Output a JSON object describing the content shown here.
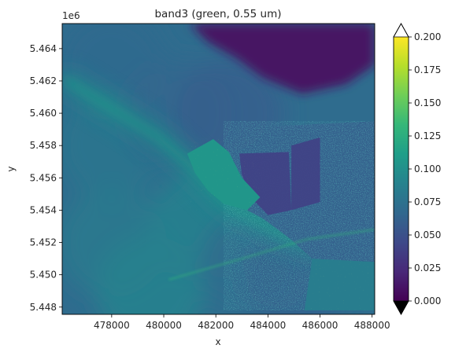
{
  "chart_data": {
    "type": "heatmap",
    "title": "band3 (green, 0.55 um)",
    "xlabel": "x",
    "ylabel": "y",
    "y_offset_label": "1e6",
    "xlim": [
      476100,
      488100
    ],
    "ylim": [
      5.44755,
      5.46555
    ],
    "x_ticks": [
      {
        "value": 478000,
        "label": "478000"
      },
      {
        "value": 480000,
        "label": "480000"
      },
      {
        "value": 482000,
        "label": "482000"
      },
      {
        "value": 484000,
        "label": "484000"
      },
      {
        "value": 486000,
        "label": "486000"
      },
      {
        "value": 488000,
        "label": "488000"
      }
    ],
    "y_ticks": [
      {
        "value": 5.448,
        "label": "5.448"
      },
      {
        "value": 5.45,
        "label": "5.450"
      },
      {
        "value": 5.452,
        "label": "5.452"
      },
      {
        "value": 5.454,
        "label": "5.454"
      },
      {
        "value": 5.456,
        "label": "5.456"
      },
      {
        "value": 5.458,
        "label": "5.458"
      },
      {
        "value": 5.46,
        "label": "5.460"
      },
      {
        "value": 5.462,
        "label": "5.462"
      },
      {
        "value": 5.464,
        "label": "5.464"
      }
    ],
    "colorbar": {
      "cmap": "viridis",
      "range": [
        0.0,
        0.2
      ],
      "extend": "both",
      "ticks": [
        {
          "value": 0.0,
          "label": "0.000"
        },
        {
          "value": 0.025,
          "label": "0.025"
        },
        {
          "value": 0.05,
          "label": "0.050"
        },
        {
          "value": 0.075,
          "label": "0.075"
        },
        {
          "value": 0.1,
          "label": "0.100"
        },
        {
          "value": 0.125,
          "label": "0.125"
        },
        {
          "value": 0.15,
          "label": "0.150"
        },
        {
          "value": 0.175,
          "label": "0.175"
        },
        {
          "value": 0.2,
          "label": "0.200"
        }
      ],
      "viridis_stops": [
        "#440154",
        "#482878",
        "#3e4989",
        "#31688e",
        "#26828e",
        "#1f9e89",
        "#35b779",
        "#6ece58",
        "#b5de2b",
        "#fde725"
      ],
      "over_color": "#ffffff",
      "under_color": "#000000"
    },
    "scene": {
      "ocean": [
        {
          "x": 478000,
          "y": 5.463,
          "v": 0.068
        },
        {
          "x": 478000,
          "y": 5.458,
          "v": 0.078
        },
        {
          "x": 478000,
          "y": 5.452,
          "v": 0.082
        },
        {
          "x": 479500,
          "y": 5.449,
          "v": 0.09
        },
        {
          "x": 480500,
          "y": 5.46,
          "v": 0.066
        },
        {
          "x": 482500,
          "y": 5.46,
          "v": 0.06
        },
        {
          "x": 481500,
          "y": 5.453,
          "v": 0.088
        },
        {
          "x": 483500,
          "y": 5.4505,
          "v": 0.07
        },
        {
          "x": 485000,
          "y": 5.45,
          "v": 0.062
        }
      ],
      "plume_points": [
        [
          476300,
          5.462
        ],
        [
          478300,
          5.46
        ],
        [
          479800,
          5.4585
        ],
        [
          481000,
          5.4568
        ],
        [
          482400,
          5.4545
        ],
        [
          484500,
          5.4525
        ],
        [
          486500,
          5.4515
        ]
      ],
      "north_shore_bay": [
        [
          482400,
          5.46555
        ],
        [
          488100,
          5.46555
        ],
        [
          488100,
          5.463
        ],
        [
          487000,
          5.4618
        ],
        [
          485300,
          5.4612
        ],
        [
          483800,
          5.4622
        ],
        [
          482800,
          5.4634
        ],
        [
          481700,
          5.4644
        ],
        [
          481000,
          5.46555
        ]
      ],
      "city_region": [
        [
          484200,
          5.4592
        ],
        [
          488100,
          5.4595
        ],
        [
          488100,
          5.4478
        ],
        [
          486200,
          5.4478
        ],
        [
          485700,
          5.451
        ],
        [
          484800,
          5.4523
        ],
        [
          483800,
          5.4535
        ],
        [
          482600,
          5.4545
        ],
        [
          482300,
          5.4568
        ],
        [
          483400,
          5.4581
        ]
      ],
      "island": [
        [
          480900,
          5.4575
        ],
        [
          481900,
          5.4584
        ],
        [
          482500,
          5.4576
        ],
        [
          483000,
          5.456
        ],
        [
          483700,
          5.4548
        ],
        [
          483200,
          5.454
        ],
        [
          482300,
          5.4544
        ],
        [
          481700,
          5.4552
        ],
        [
          481200,
          5.4563
        ]
      ],
      "dark_fields": [
        [
          [
            482900,
            5.4575
          ],
          [
            484800,
            5.4576
          ],
          [
            484900,
            5.454
          ],
          [
            484000,
            5.4537
          ],
          [
            483400,
            5.4547
          ],
          [
            483000,
            5.4562
          ]
        ],
        [
          [
            484900,
            5.458
          ],
          [
            486000,
            5.4585
          ],
          [
            486000,
            5.4545
          ],
          [
            484900,
            5.454
          ]
        ]
      ],
      "port_region": [
        [
          485700,
          5.451
        ],
        [
          488100,
          5.4508
        ],
        [
          488100,
          5.4478
        ],
        [
          485400,
          5.4478
        ]
      ],
      "channel_line": [
        [
          480200,
          5.4497
        ],
        [
          483000,
          5.451
        ],
        [
          485500,
          5.4522
        ],
        [
          488100,
          5.4528
        ]
      ]
    }
  }
}
